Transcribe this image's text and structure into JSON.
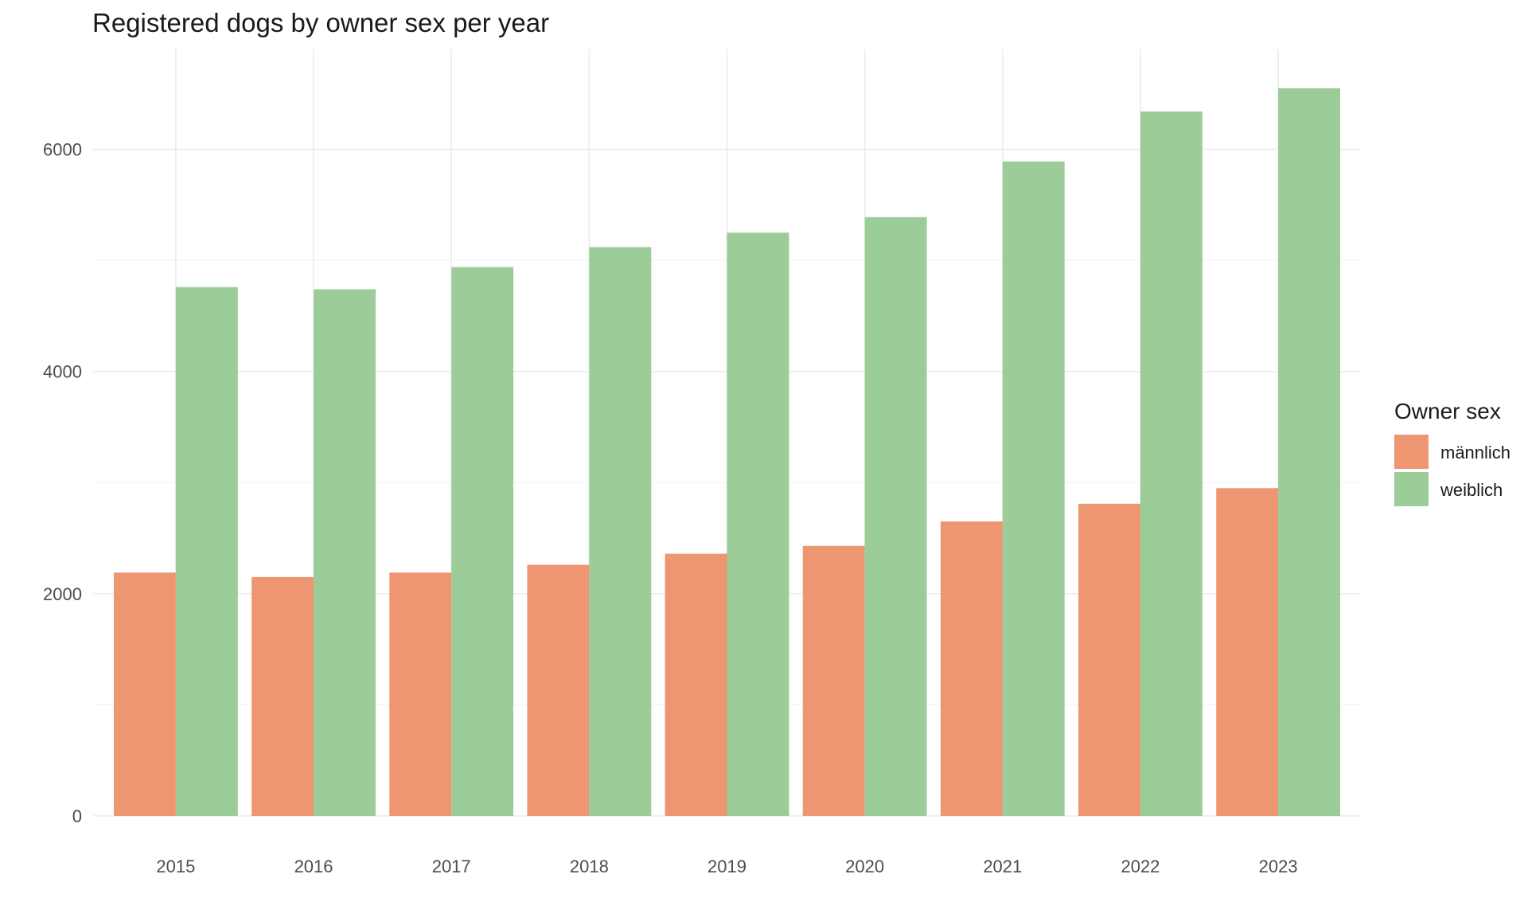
{
  "chart_data": {
    "type": "bar",
    "title": "Registered dogs by owner sex per year",
    "xlabel": "",
    "ylabel": "",
    "categories": [
      "2015",
      "2016",
      "2017",
      "2018",
      "2019",
      "2020",
      "2021",
      "2022",
      "2023"
    ],
    "series": [
      {
        "name": "männlich",
        "color": "#ee9572",
        "values": [
          2190,
          2150,
          2190,
          2260,
          2360,
          2430,
          2650,
          2810,
          2950
        ]
      },
      {
        "name": "weiblich",
        "color": "#9ccc98",
        "values": [
          4760,
          4740,
          4940,
          5120,
          5250,
          5390,
          5890,
          6340,
          6550
        ]
      }
    ],
    "ylim": [
      0,
      6900
    ],
    "yticks": [
      0,
      2000,
      4000,
      6000
    ],
    "grid": true,
    "legend": {
      "title": "Owner sex",
      "position": "right"
    }
  }
}
